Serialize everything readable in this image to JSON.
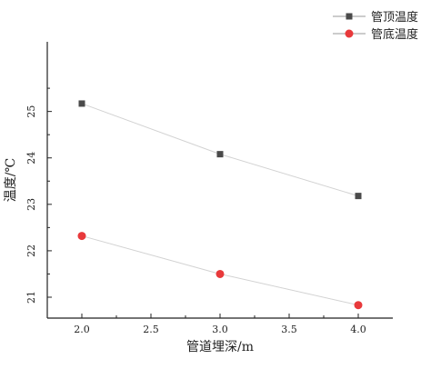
{
  "chart_data": {
    "type": "line",
    "x": [
      2.0,
      3.0,
      4.0
    ],
    "xlabel": "管道埋深/m",
    "ylabel": "温度/℃",
    "xlim": [
      1.75,
      4.25
    ],
    "ylim": [
      20.55,
      26.5
    ],
    "xticks": [
      2.0,
      2.5,
      3.0,
      3.5,
      4.0
    ],
    "xtick_labels": [
      "2.0",
      "2.5",
      "3.0",
      "3.5",
      "4.0"
    ],
    "yticks": [
      21,
      22,
      23,
      24,
      25
    ],
    "ytick_labels": [
      "21",
      "22",
      "23",
      "24",
      "25"
    ],
    "grid": false,
    "legend_position": "top-right",
    "series": [
      {
        "name": "管顶温度",
        "values": [
          25.17,
          24.08,
          23.18
        ],
        "color": "#4a4a4a",
        "marker": "square"
      },
      {
        "name": "管底温度",
        "values": [
          22.32,
          21.5,
          20.83
        ],
        "color": "#e8393b",
        "marker": "circle"
      }
    ]
  }
}
